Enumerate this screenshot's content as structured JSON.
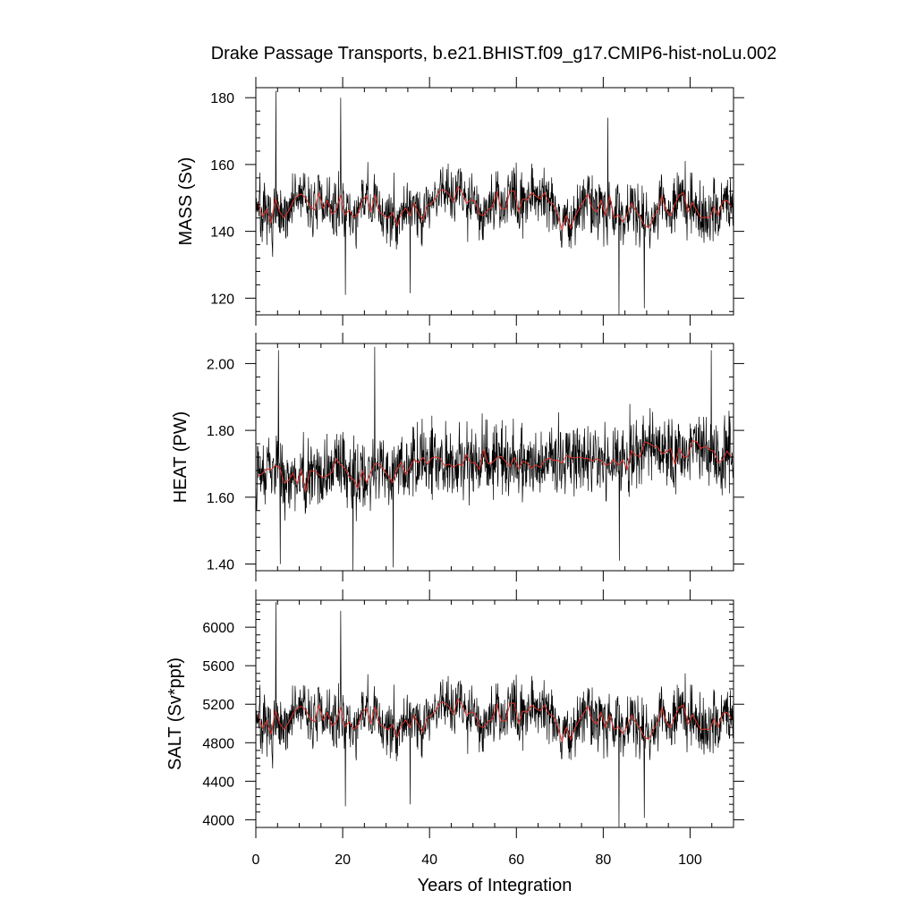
{
  "chart_data": {
    "type": "line",
    "title": "Drake Passage Transports, b.e21.BHIST.f09_g17.CMIP6-hist-noLu.002",
    "xlabel": "Years of Integration",
    "xlim": [
      0,
      110
    ],
    "xticks": [
      0,
      20,
      40,
      60,
      80,
      100
    ],
    "xtick_labels": [
      "0",
      "20",
      "40",
      "60",
      "80",
      "100"
    ],
    "grid": false,
    "legend": "none",
    "colors": {
      "monthly": "#000000",
      "annual_mean": "#e0302a"
    },
    "panels": [
      {
        "ylabel": "MASS (Sv)",
        "ylim": [
          115,
          183
        ],
        "yticks": [
          120,
          140,
          160,
          180
        ],
        "ytick_labels": [
          "120",
          "140",
          "160",
          "180"
        ],
        "mean": 146.5,
        "amp": 6.5,
        "noise": 7.5,
        "spikes": [
          [
            4.6,
            182
          ],
          [
            19.5,
            180
          ],
          [
            20.6,
            121
          ],
          [
            83.6,
            115
          ],
          [
            89.4,
            117
          ],
          [
            35.5,
            121.5
          ],
          [
            81.0,
            174
          ]
        ]
      },
      {
        "ylabel": "HEAT (PW)",
        "ylim": [
          1.38,
          2.06
        ],
        "yticks": [
          1.4,
          1.6,
          1.8,
          2.0
        ],
        "ytick_labels": [
          "1.40",
          "1.60",
          "1.80",
          "2.00"
        ],
        "mean": 1.7,
        "trend": 0.0006,
        "amp": 0.045,
        "noise": 0.095,
        "spikes": [
          [
            5.2,
            2.04
          ],
          [
            5.6,
            1.4
          ],
          [
            27.3,
            2.05
          ],
          [
            22.3,
            1.38
          ],
          [
            31.6,
            1.39
          ],
          [
            83.7,
            1.41
          ],
          [
            104.8,
            2.04
          ]
        ]
      },
      {
        "ylabel": "SALT (Sv*ppt)",
        "ylim": [
          3920,
          6280
        ],
        "yticks": [
          4000,
          4400,
          4800,
          5200,
          5600,
          6000
        ],
        "ytick_labels": [
          "4000",
          "4400",
          "4800",
          "5200",
          "5600",
          "6000"
        ],
        "mean": 5020,
        "amp": 220,
        "noise": 260,
        "spikes": [
          [
            4.6,
            6260
          ],
          [
            19.5,
            6170
          ],
          [
            20.6,
            4140
          ],
          [
            83.6,
            3920
          ],
          [
            89.4,
            4020
          ],
          [
            35.5,
            4160
          ]
        ]
      }
    ]
  }
}
